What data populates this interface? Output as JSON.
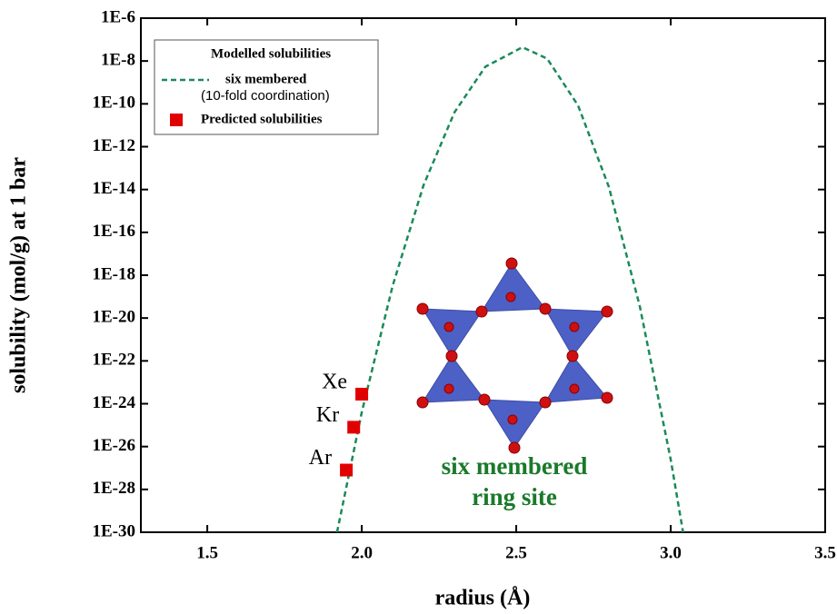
{
  "chart_data": {
    "type": "line",
    "xlabel": "radius (Å)",
    "ylabel": "solubility (mol/g) at 1 bar",
    "xlim": [
      1.285,
      3.5
    ],
    "xticks": [
      1.5,
      {
        "value": 2,
        "label": "2.0"
      },
      2.5,
      {
        "value": 3,
        "label": "3.0"
      },
      3.5
    ],
    "ylim": [
      1e-30,
      1e-06
    ],
    "yscale": "log",
    "yticks": [
      {
        "value": 1e-30,
        "label": "1E-30"
      },
      {
        "value": 1e-28,
        "label": "1E-28"
      },
      {
        "value": 1e-26,
        "label": "1E-26"
      },
      {
        "value": 1e-24,
        "label": "1E-24"
      },
      {
        "value": 1e-22,
        "label": "1E-22"
      },
      {
        "value": 1e-20,
        "label": "1E-20"
      },
      {
        "value": 1e-18,
        "label": "1E-18"
      },
      {
        "value": 1e-16,
        "label": "1E-16"
      },
      {
        "value": 1e-14,
        "label": "1E-14"
      },
      {
        "value": 1e-12,
        "label": "1E-12"
      },
      {
        "value": 1e-10,
        "label": "1E-10"
      },
      {
        "value": 1e-08,
        "label": "1E-8"
      },
      {
        "value": 1e-06,
        "label": "1E-6"
      }
    ],
    "legend": {
      "position": "upper left",
      "title": "Modelled solubilities",
      "note": "(10-fold coordination)"
    },
    "annotation": [
      "six membered",
      "ring site"
    ],
    "series": [
      {
        "name": "six membered",
        "kind": "line",
        "dashed": true,
        "color": "#1a8a5a",
        "x": [
          1.92,
          2.0,
          2.1,
          2.2,
          2.3,
          2.4,
          2.52,
          2.6,
          2.7,
          2.8,
          2.9,
          3.0,
          3.04
        ],
        "values": [
          1e-30,
          4e-25,
          3.2e-19,
          1.6e-14,
          4e-11,
          5.4e-09,
          4.4e-08,
          1.3e-08,
          8.5e-11,
          1.3e-14,
          3.5e-20,
          2.5e-27,
          1e-30
        ]
      },
      {
        "name": "Predicted solubilities",
        "kind": "scatter",
        "color": "#e00000",
        "x": [
          1.95,
          1.974,
          2.0
        ],
        "values": [
          8e-28,
          8e-26,
          2.8e-24
        ],
        "labels": [
          "Ar",
          "Kr",
          "Xe"
        ]
      }
    ]
  }
}
